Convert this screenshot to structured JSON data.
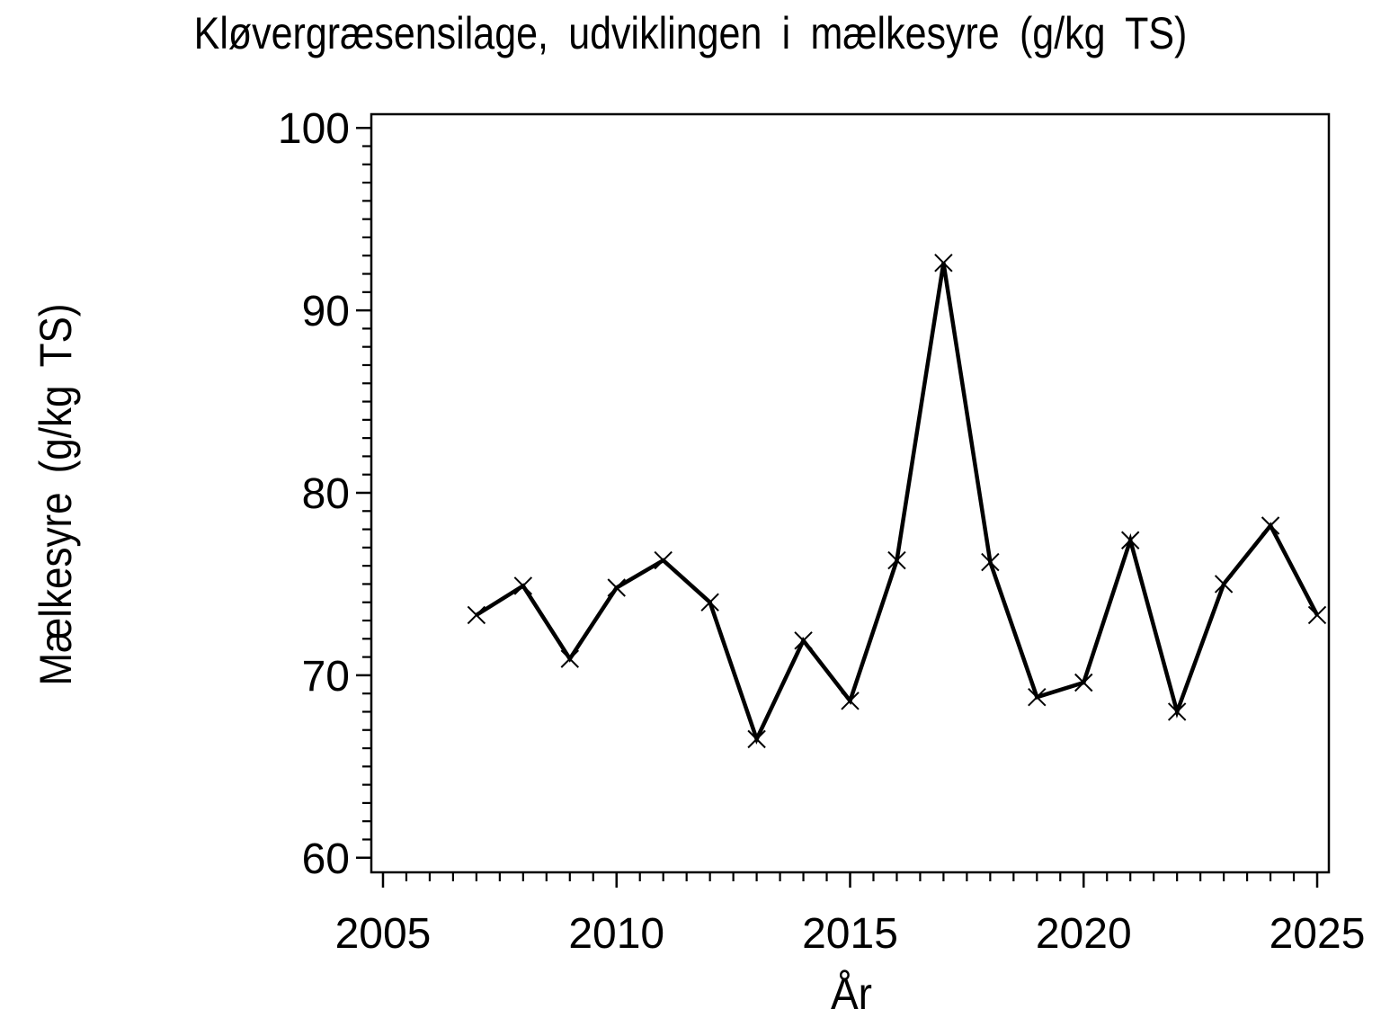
{
  "page": {
    "background": "#ffffff",
    "foreground": "#000000"
  },
  "chart_data": {
    "type": "line",
    "title": "Kløvergræsensilage, udviklingen i mælkesyre (g/kg TS)",
    "xlabel": "År",
    "ylabel": "Mælkesyre (g/kg TS)",
    "x": [
      2007,
      2008,
      2009,
      2010,
      2011,
      2012,
      2013,
      2014,
      2015,
      2016,
      2017,
      2018,
      2019,
      2020,
      2021,
      2022,
      2023,
      2024,
      2025
    ],
    "values": [
      73.3,
      74.9,
      70.9,
      74.8,
      76.3,
      74.0,
      66.5,
      71.9,
      68.6,
      76.3,
      92.6,
      76.2,
      68.8,
      69.6,
      77.4,
      68.0,
      75.0,
      78.2,
      73.3
    ],
    "series": [
      {
        "name": "Mælkesyre",
        "values": [
          73.3,
          74.9,
          70.9,
          74.8,
          76.3,
          74.0,
          66.5,
          71.9,
          68.6,
          76.3,
          92.6,
          76.2,
          68.8,
          69.6,
          77.4,
          68.0,
          75.0,
          78.2,
          73.3
        ]
      }
    ],
    "x_major_ticks": [
      2005,
      2010,
      2015,
      2020,
      2025
    ],
    "x_tick_labels": [
      "2005",
      "2010",
      "2015",
      "2020",
      "2025"
    ],
    "x_minor_step": 0.5,
    "y_major_ticks": [
      60,
      70,
      80,
      90,
      100
    ],
    "y_tick_labels": [
      "60",
      "70",
      "80",
      "90",
      "100"
    ],
    "y_minor_step": 1,
    "xlim": [
      2004.75,
      2025.25
    ],
    "ylim": [
      59.2,
      100.75
    ],
    "grid": false,
    "legend": "none",
    "marker": "x-cross",
    "line_color": "#000000",
    "marker_color": "#000000",
    "frame": "full-box"
  }
}
